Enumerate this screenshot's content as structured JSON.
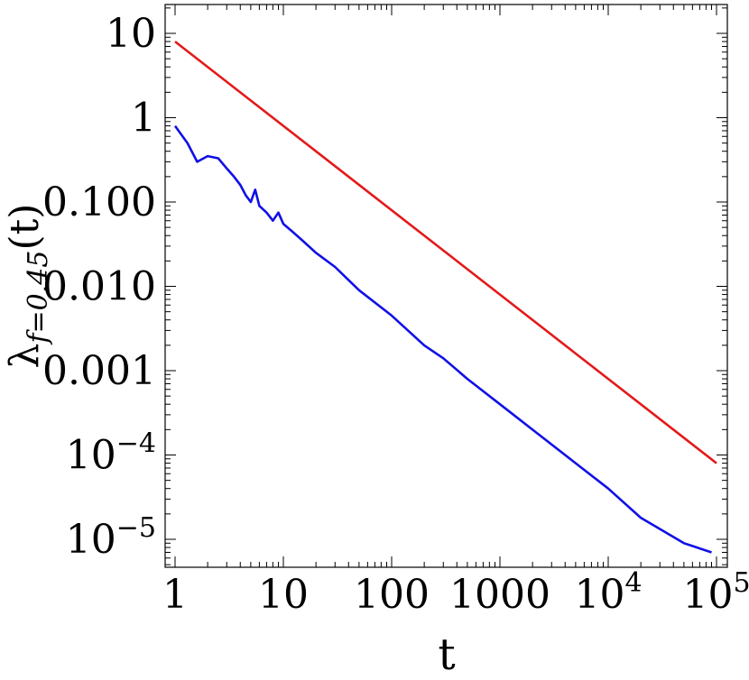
{
  "chart_data": {
    "type": "line",
    "title": "",
    "xlabel": "t",
    "ylabel": {
      "symbol": "λ",
      "subscript": "f=0.45",
      "suffix": "(t)"
    },
    "xscale": "log",
    "yscale": "log",
    "xlim": [
      1,
      100000
    ],
    "ylim": [
      2e-06,
      15
    ],
    "x_ticks": [
      {
        "value": 1,
        "label": "1"
      },
      {
        "value": 10,
        "label": "10"
      },
      {
        "value": 100,
        "label": "100"
      },
      {
        "value": 1000,
        "label": "1000"
      },
      {
        "value": 10000,
        "base": "10",
        "exp": "4"
      },
      {
        "value": 100000,
        "base": "10",
        "exp": "5"
      }
    ],
    "y_ticks": [
      {
        "value": 10,
        "label": "10"
      },
      {
        "value": 1,
        "label": "1"
      },
      {
        "value": 0.1,
        "label": "0.100"
      },
      {
        "value": 0.01,
        "label": "0.010"
      },
      {
        "value": 0.001,
        "label": "0.001"
      },
      {
        "value": 0.0001,
        "base": "10",
        "exp": "−4"
      },
      {
        "value": 1e-05,
        "base": "10",
        "exp": "−5"
      }
    ],
    "series": [
      {
        "color": "#e31a1a",
        "x": [
          1,
          100000
        ],
        "y": [
          8,
          8e-05
        ]
      },
      {
        "color": "#1010e6",
        "x": [
          1,
          1.3,
          1.6,
          2.0,
          2.5,
          3.0,
          3.5,
          4.0,
          4.5,
          5.0,
          5.5,
          6.0,
          7.0,
          8.0,
          9.0,
          10,
          12,
          15,
          20,
          30,
          50,
          100,
          200,
          300,
          500,
          1000,
          2000,
          5000,
          10000,
          20000,
          50000,
          90000
        ],
        "y": [
          0.8,
          0.5,
          0.3,
          0.35,
          0.33,
          0.25,
          0.2,
          0.16,
          0.12,
          0.1,
          0.14,
          0.09,
          0.075,
          0.06,
          0.075,
          0.055,
          0.045,
          0.035,
          0.025,
          0.017,
          0.009,
          0.0045,
          0.002,
          0.0014,
          0.0008,
          0.0004,
          0.0002,
          8e-05,
          4e-05,
          1.8e-05,
          9e-06,
          7e-06
        ]
      }
    ]
  }
}
